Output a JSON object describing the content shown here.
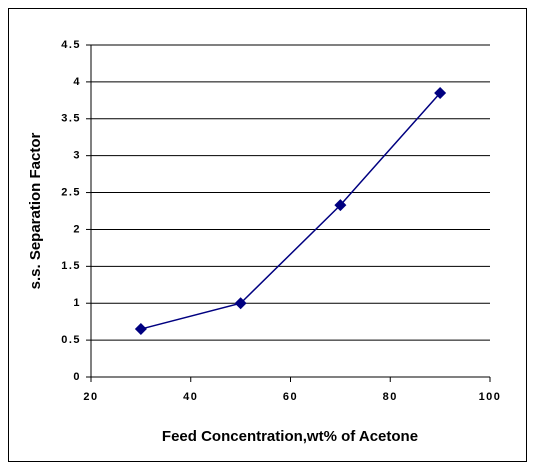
{
  "chart_data": {
    "type": "line",
    "x_label": "Feed Concentration,wt% of Acetone",
    "y_label": "s.s. Separation Factor",
    "x": [
      30,
      50,
      70,
      90
    ],
    "series": [
      {
        "color": "#000080",
        "values": [
          0.65,
          1.0,
          2.33,
          3.85
        ]
      }
    ],
    "xlim": [
      20,
      100
    ],
    "xticks": [
      20,
      40,
      60,
      80,
      100
    ],
    "ylim": [
      0,
      4.5
    ],
    "yticks": [
      0,
      0.5,
      1,
      1.5,
      2,
      2.5,
      3,
      3.5,
      4,
      4.5
    ],
    "grid": true
  }
}
